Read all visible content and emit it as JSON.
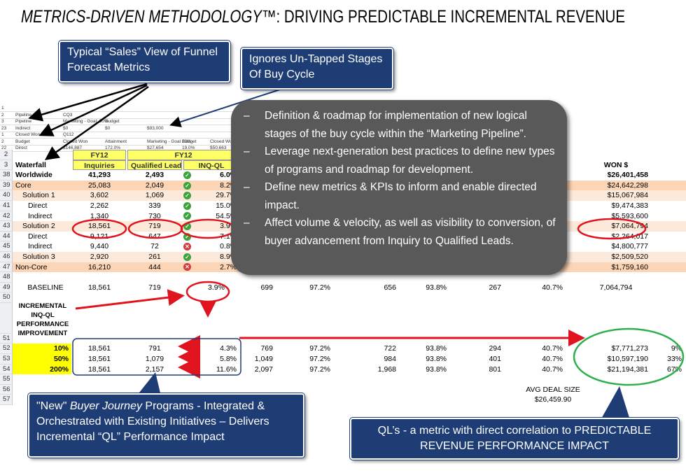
{
  "title": {
    "italic": "METRICS-DRIVEN METHODOLOGY™",
    "rest": ": DRIVING PREDICTABLE INCREMENTAL REVENUE"
  },
  "callouts": {
    "sales_view": "Typical “Sales” View of Funnel Forecast Metrics",
    "ignores": "Ignores Un-Tapped Stages Of Buy Cycle",
    "new_programs_prefix": "\"New\" ",
    "new_programs_italic": "Buyer Journey",
    "new_programs_rest": " Programs - Integrated & Orchestrated with Existing Initiatives – Delivers Incremental “QL” Performance Impact",
    "ql_metric": "QL’s - a metric with direct correlation to PREDICTABLE REVENUE PERFORMANCE IMPACT"
  },
  "bullets": [
    "Definition & roadmap for implementation of new logical stages of the buy cycle within the “Marketing Pipeline”.",
    "Leverage next-generation best practices to define new types of programs and roadmap for development.",
    "Define new metrics & KPIs to inform and enable directed impact.",
    "Affect volume & velocity, as well as visibility to conversion, of buyer advancement from Inquiry to Qualified Leads."
  ],
  "bullet_dash": "–",
  "mini_sheet": {
    "rows": [
      {
        "rn": "1",
        "cells": []
      },
      {
        "rn": "2",
        "cells": [
          "Pipeline",
          "CQ3"
        ]
      },
      {
        "rn": "3",
        "cells": [
          "Pipeline",
          "Marketing - Goal: 30%",
          "Budget"
        ]
      },
      {
        "rn": "23",
        "cells": [
          "Indirect",
          "$0",
          "$0",
          "$93,000"
        ]
      },
      {
        "rn": "1",
        "cells": [
          "Closed Won",
          "Q112"
        ]
      },
      {
        "rn": "2",
        "cells": [
          "Budget",
          "Closed Won",
          "Attainment",
          "Marketing - Goal 13%",
          "Budget",
          "Closed Won"
        ]
      },
      {
        "rn": "22",
        "cells": [
          "Direct",
          "$146,887",
          "172.0%",
          "$27,654",
          "19.0%",
          "$50,663",
          "$59,712"
        ]
      }
    ]
  },
  "sheet": {
    "header": {
      "row_numbers": [
        "2",
        "3"
      ],
      "label": "Waterfall",
      "fy_label": "FY12",
      "col_inquiries": "Inquiries",
      "col_ql": "Qualified Leads",
      "col_inq_ql": "INQ-QL",
      "col_won": "WON $"
    },
    "rows": [
      {
        "rn": "38",
        "label": "Worldwide",
        "inq": "41,293",
        "ql": "2,493",
        "status": "ok",
        "rate": "6.0%",
        "won": "$26,401,458",
        "style": "bold"
      },
      {
        "rn": "39",
        "label": "Core",
        "inq": "25,083",
        "ql": "2,049",
        "status": "ok",
        "rate": "8.2%",
        "won": "$24,642,298",
        "style": "orange"
      },
      {
        "rn": "40",
        "label": "Solution 1",
        "inq": "3,602",
        "ql": "1,069",
        "status": "ok",
        "rate": "29.7%",
        "won": "$15,067,984",
        "style": "light"
      },
      {
        "rn": "41",
        "label": "Direct",
        "inq": "2,262",
        "ql": "339",
        "status": "ok",
        "rate": "15.0%",
        "won": "$9,474,383",
        "style": "plain"
      },
      {
        "rn": "42",
        "label": "Indirect",
        "inq": "1,340",
        "ql": "730",
        "status": "ok",
        "rate": "54.5%",
        "won": "$5,593,600",
        "style": "plain"
      },
      {
        "rn": "43",
        "label": "Solution 2",
        "inq": "18,561",
        "ql": "719",
        "status": "ok",
        "rate": "3.9%",
        "won": "$7,064,794",
        "style": "light"
      },
      {
        "rn": "44",
        "label": "Direct",
        "inq": "9,121",
        "ql": "647",
        "status": "ok",
        "rate": "7.1%",
        "won": "$2,264,017",
        "style": "plain"
      },
      {
        "rn": "45",
        "label": "Indirect",
        "inq": "9,440",
        "ql": "72",
        "status": "bad",
        "rate": "0.8%",
        "won": "$4,800,777",
        "style": "plain"
      },
      {
        "rn": "46",
        "label": "Solution 3",
        "inq": "2,920",
        "ql": "261",
        "status": "ok",
        "rate": "8.9%",
        "won": "$2,509,520",
        "style": "light"
      },
      {
        "rn": "47",
        "label": "Non-Core",
        "inq": "16,210",
        "ql": "444",
        "status": "bad",
        "rate": "2.7%",
        "won": "$1,759,160",
        "style": "orange"
      }
    ],
    "row48": "48",
    "baseline": {
      "rn": "49",
      "label": "BASELINE",
      "inq": "18,561",
      "ql": "719",
      "rate": "3.9%",
      "c1": "699",
      "c2": "97.2%",
      "c3": "656",
      "c4": "93.8%",
      "c5": "267",
      "c6": "40.7%",
      "won": "7,064,794"
    },
    "row50": "50",
    "row51": "51",
    "incremental_label": "INCREMENTAL INQ-QL PERFORMANCE IMPROVEMENT",
    "scenarios": [
      {
        "rn": "52",
        "pct": "10%",
        "inq": "18,561",
        "ql": "791",
        "rate": "4.3%",
        "c1": "769",
        "c2": "97.2%",
        "c3": "722",
        "c4": "93.8%",
        "c5": "294",
        "c6": "40.7%",
        "won": "$7,771,273",
        "lift": "9%"
      },
      {
        "rn": "53",
        "pct": "50%",
        "inq": "18,561",
        "ql": "1,079",
        "rate": "5.8%",
        "c1": "1,049",
        "c2": "97.2%",
        "c3": "984",
        "c4": "93.8%",
        "c5": "401",
        "c6": "40.7%",
        "won": "$10,597,190",
        "lift": "33%"
      },
      {
        "rn": "54",
        "pct": "200%",
        "inq": "18,561",
        "ql": "2,157",
        "rate": "11.6%",
        "c1": "2,097",
        "c2": "97.2%",
        "c3": "1,968",
        "c4": "93.8%",
        "c5": "801",
        "c6": "40.7%",
        "won": "$21,194,381",
        "lift": "67%"
      }
    ],
    "row55": "55",
    "row56": "56",
    "row57": "57",
    "avg_deal_label": "AVG DEAL SIZE",
    "avg_deal_value": "$26,459.90"
  },
  "colors": {
    "callout_blue": "#1f3d75",
    "bubble_gray": "#595959",
    "highlight_red": "#e0141e",
    "highlight_green": "#2db04b",
    "header_yellow": "#ffff66",
    "band_orange": "#fbd5b5"
  }
}
